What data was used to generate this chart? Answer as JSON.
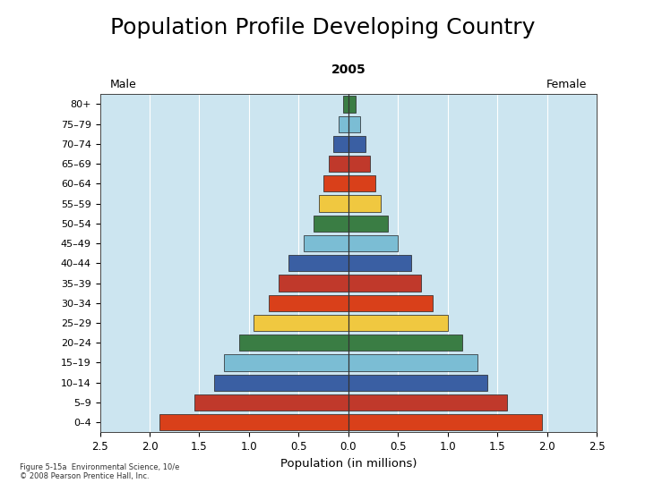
{
  "title": "Population Profile Developing Country",
  "subtitle": "2005",
  "xlabel": "Population (in millions)",
  "male_label": "Male",
  "female_label": "Female",
  "footnote": "Figure 5-15a  Environmental Science, 10/e\n© 2008 Pearson Prentice Hall, Inc.",
  "age_groups": [
    "0–4",
    "5–9",
    "10–14",
    "15–19",
    "20–24",
    "25–29",
    "30–34",
    "35–39",
    "40–44",
    "45–49",
    "50–54",
    "55–59",
    "60–64",
    "65–69",
    "70–74",
    "75–79",
    "80+"
  ],
  "male_values": [
    1.9,
    1.55,
    1.35,
    1.25,
    1.1,
    0.95,
    0.8,
    0.7,
    0.6,
    0.45,
    0.35,
    0.3,
    0.25,
    0.2,
    0.15,
    0.1,
    0.05
  ],
  "female_values": [
    1.95,
    1.6,
    1.4,
    1.3,
    1.15,
    1.0,
    0.85,
    0.73,
    0.63,
    0.5,
    0.4,
    0.33,
    0.27,
    0.22,
    0.17,
    0.12,
    0.07
  ],
  "bar_colors": [
    "#d9401a",
    "#c0392b",
    "#3a5fa3",
    "#7bbdd4",
    "#3a7d44",
    "#f0c840",
    "#d9401a",
    "#c0392b",
    "#3a5fa3",
    "#7bbdd4",
    "#3a7d44",
    "#f0c840",
    "#d9401a",
    "#c0392b",
    "#3a5fa3",
    "#7bbdd4",
    "#3a7d44"
  ],
  "xlim": [
    -2.5,
    2.5
  ],
  "xticks": [
    -2.5,
    -2.0,
    -1.5,
    -1.0,
    -0.5,
    0.0,
    0.5,
    1.0,
    1.5,
    2.0,
    2.5
  ],
  "xticklabels": [
    "2.5",
    "2.0",
    "1.5",
    "1.0",
    "0.5",
    "0.0",
    "0.5",
    "1.0",
    "1.5",
    "2.0",
    "2.5"
  ],
  "background_color": "#cce5f0",
  "bar_height": 0.82,
  "bar_edgecolor": "#222222",
  "bar_linewidth": 0.5
}
